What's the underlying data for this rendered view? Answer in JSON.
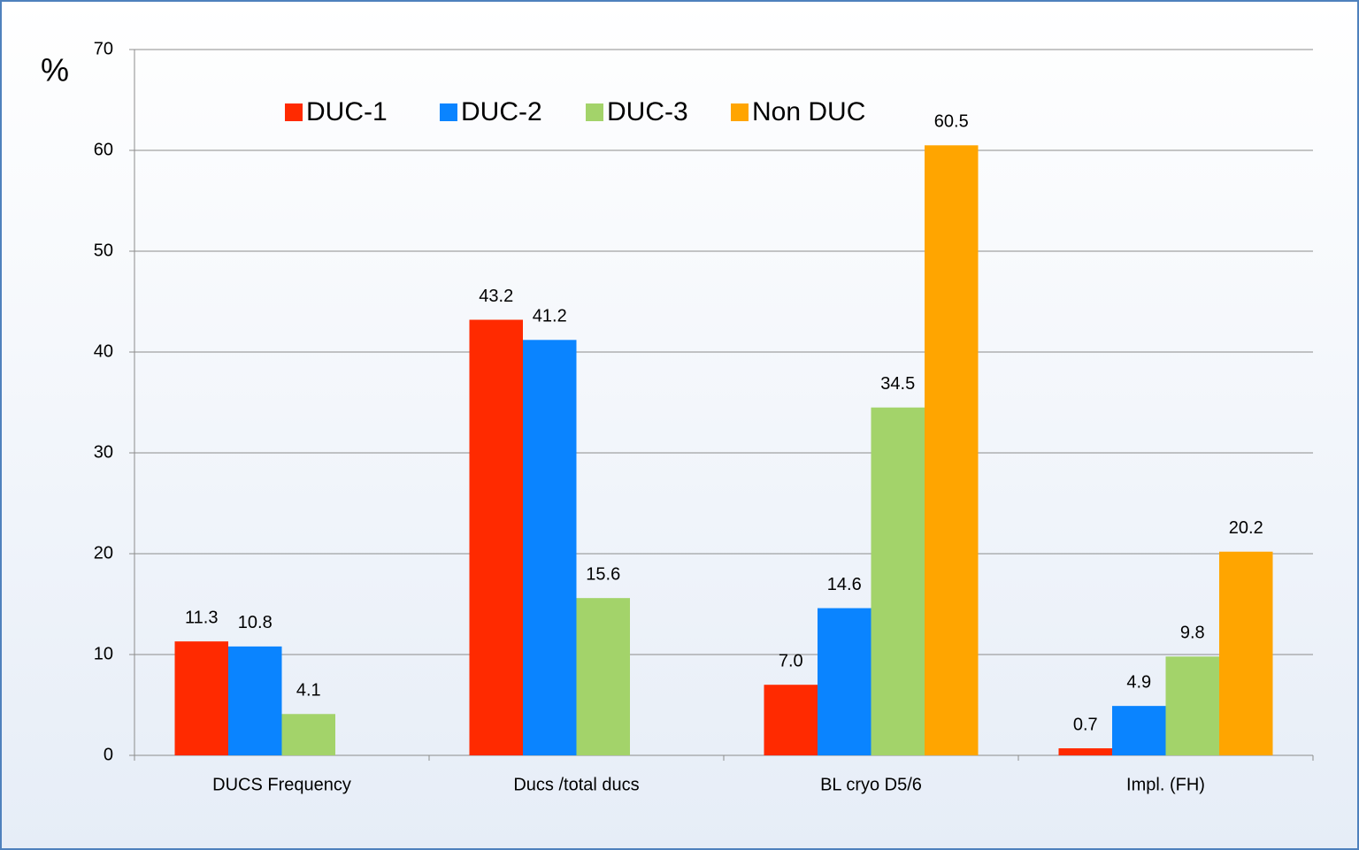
{
  "chart_data": {
    "type": "bar",
    "ylabel": "%",
    "categories": [
      "DUCS Frequency",
      "Ducs /total ducs",
      "BL cryo D5/6",
      "Impl. (FH)"
    ],
    "series": [
      {
        "name": "DUC-1",
        "color": "#ff2a00",
        "values": [
          11.3,
          43.2,
          7,
          0.7
        ],
        "value_labels": [
          "11.3",
          "43.2",
          "7.0",
          "0.7"
        ]
      },
      {
        "name": "DUC-2",
        "color": "#0a84ff",
        "values": [
          10.8,
          41.2,
          14.6,
          4.9
        ],
        "value_labels": [
          "10.8",
          "41.2",
          "14.6",
          "4.9"
        ]
      },
      {
        "name": "DUC-3",
        "color": "#a3d36a",
        "values": [
          4.1,
          15.6,
          34.5,
          9.8
        ],
        "value_labels": [
          "4.1",
          "15.6",
          "34.5",
          "9.8"
        ]
      },
      {
        "name": "Non DUC",
        "color": "#ffa500",
        "values": [
          null,
          null,
          60.5,
          20.2
        ],
        "value_labels": [
          null,
          null,
          "60.5",
          "20.2"
        ]
      }
    ],
    "ylim": [
      0,
      70
    ],
    "yticks": [
      0,
      10,
      20,
      30,
      40,
      50,
      60,
      70
    ],
    "grid": true,
    "legend": "top"
  }
}
